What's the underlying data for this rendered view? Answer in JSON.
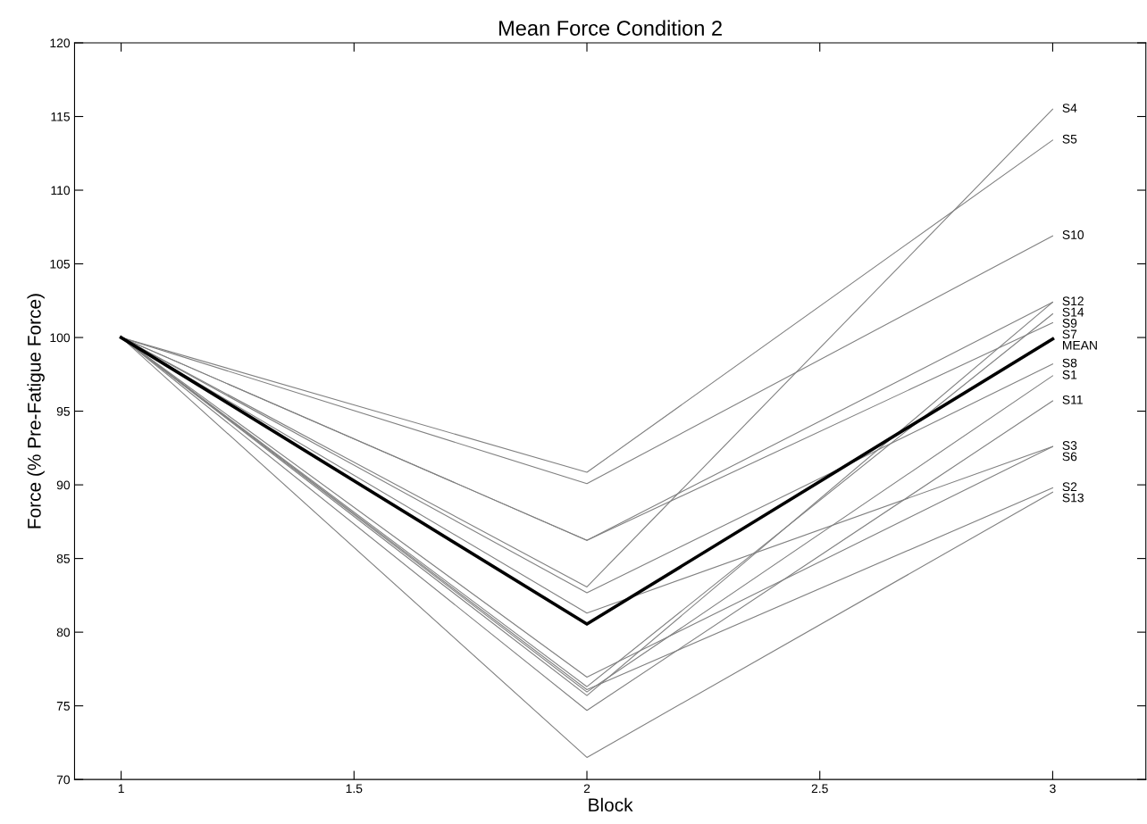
{
  "chart_data": {
    "type": "line",
    "title": "Mean Force Condition 2",
    "xlabel": "Block",
    "ylabel": "Force (% Pre-Fatigue Force)",
    "x": [
      1,
      2,
      3
    ],
    "xlim": [
      0.9,
      3.2
    ],
    "xticks": [
      1,
      1.5,
      2,
      2.5,
      3
    ],
    "ylim": [
      70,
      120
    ],
    "yticks": [
      70,
      75,
      80,
      85,
      90,
      95,
      100,
      105,
      110,
      115,
      120
    ],
    "grid": false,
    "legend": false,
    "marker": "none",
    "line_style": "solid",
    "series": [
      {
        "name": "S1",
        "color": "#808080",
        "values": [
          100,
          75.94,
          97.4
        ]
      },
      {
        "name": "S2",
        "color": "#808080",
        "values": [
          100,
          76.1,
          89.8
        ]
      },
      {
        "name": "S3",
        "color": "#808080",
        "values": [
          100,
          81.3,
          92.6
        ]
      },
      {
        "name": "S4",
        "color": "#808080",
        "values": [
          100,
          83.07,
          115.5
        ]
      },
      {
        "name": "S5",
        "color": "#808080",
        "values": [
          100,
          90.85,
          113.4
        ]
      },
      {
        "name": "S6",
        "color": "#808080",
        "values": [
          100,
          76.95,
          92.6
        ]
      },
      {
        "name": "S7",
        "color": "#808080",
        "values": [
          100,
          86.24,
          101.0
        ]
      },
      {
        "name": "S8",
        "color": "#808080",
        "values": [
          100,
          82.67,
          98.2
        ]
      },
      {
        "name": "S9",
        "color": "#808080",
        "values": [
          100,
          76.3,
          101.6
        ]
      },
      {
        "name": "S10",
        "color": "#808080",
        "values": [
          100,
          90.08,
          106.9
        ]
      },
      {
        "name": "S11",
        "color": "#808080",
        "values": [
          100,
          74.69,
          95.7
        ]
      },
      {
        "name": "S12",
        "color": "#808080",
        "values": [
          100,
          86.24,
          102.4
        ]
      },
      {
        "name": "S13",
        "color": "#808080",
        "values": [
          100,
          71.5,
          89.5
        ]
      },
      {
        "name": "S14",
        "color": "#808080",
        "values": [
          100,
          75.7,
          102.4
        ]
      },
      {
        "name": "MEAN",
        "color": "#000000",
        "values": [
          100,
          80.55,
          99.9
        ]
      }
    ]
  }
}
